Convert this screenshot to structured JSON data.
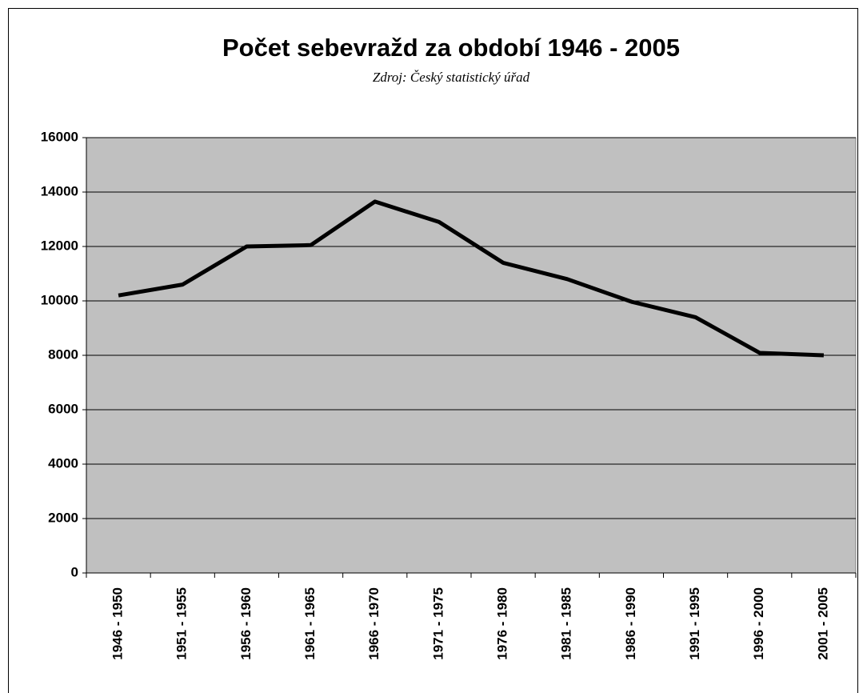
{
  "chart_data": {
    "type": "line",
    "title": "Počet sebevražd za období 1946 - 2005",
    "subtitle": "Zdroj: Český statistický úřad",
    "categories": [
      "1946 - 1950",
      "1951 - 1955",
      "1956 - 1960",
      "1961 - 1965",
      "1966 - 1970",
      "1971 - 1975",
      "1976 - 1980",
      "1981 - 1985",
      "1986 - 1990",
      "1991 - 1995",
      "1996 - 2000",
      "2001 - 2005"
    ],
    "values": [
      10200,
      10600,
      12000,
      12050,
      13650,
      12900,
      11400,
      10800,
      9970,
      9400,
      8090,
      8000
    ],
    "color": "#000000",
    "plot_color": "#c0c0c0",
    "ylim": [
      0,
      16000
    ],
    "yticks": [
      0,
      2000,
      4000,
      6000,
      8000,
      10000,
      12000,
      14000,
      16000
    ],
    "grid": true
  }
}
